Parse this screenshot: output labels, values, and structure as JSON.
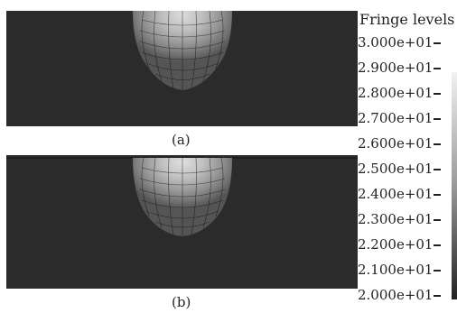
{
  "legend": {
    "title": "Fringe levels",
    "levels": [
      "3.000e+01",
      "2.900e+01",
      "2.800e+01",
      "2.700e+01",
      "2.600e+01",
      "2.500e+01",
      "2.400e+01",
      "2.300e+01",
      "2.200e+01",
      "2.100e+01",
      "2.000e+01"
    ]
  },
  "panels": [
    {
      "caption": "(a)"
    },
    {
      "caption": "(b)"
    }
  ]
}
